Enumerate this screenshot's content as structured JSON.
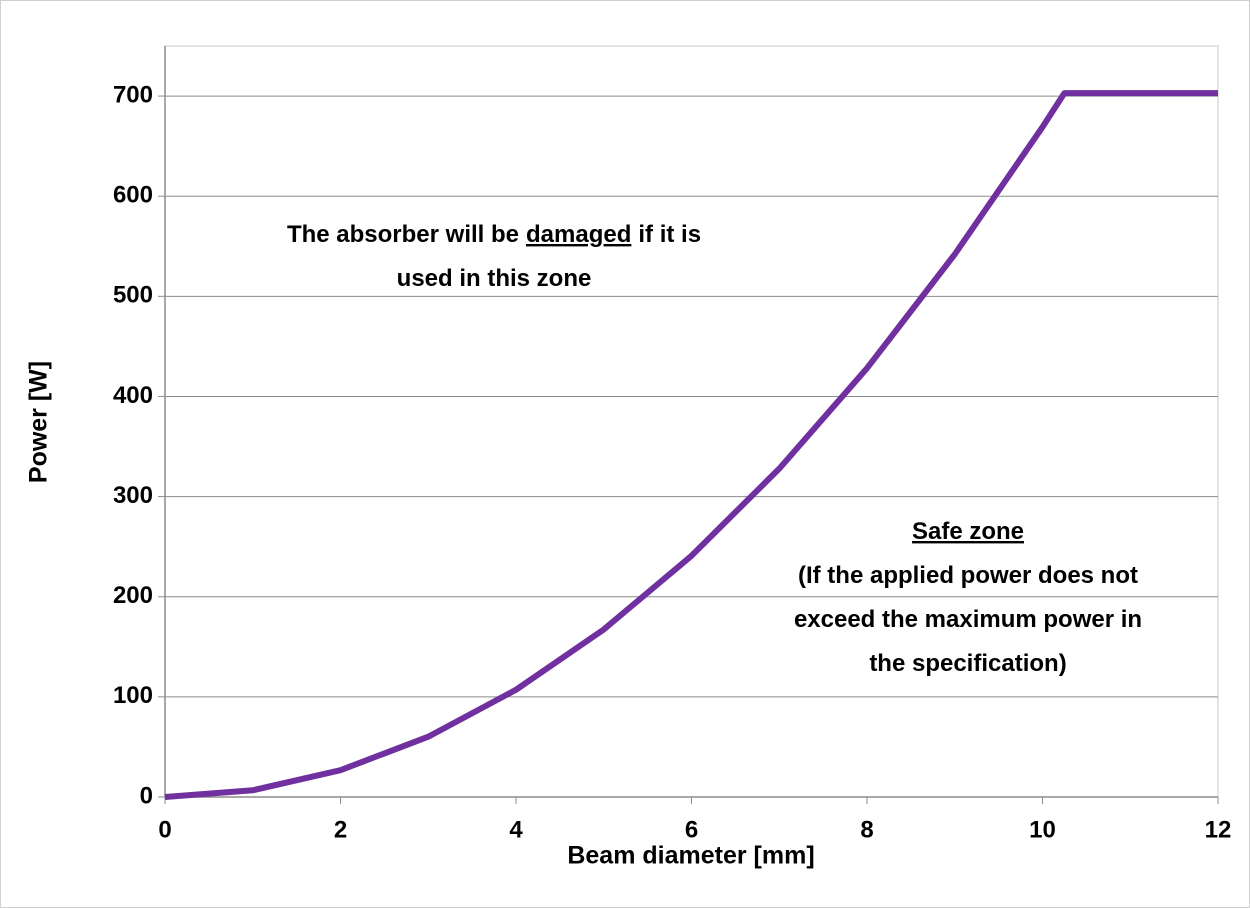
{
  "chart_data": {
    "type": "line",
    "x_label": "Beam diameter [mm]",
    "y_label": "Power [W]",
    "x": [
      0,
      1,
      2,
      3,
      4,
      5,
      6,
      7,
      8,
      9,
      10,
      10.25,
      12
    ],
    "series": [
      {
        "color": "#7030a0",
        "values": [
          0,
          6.7,
          26.8,
          60.2,
          107.1,
          167.3,
          240.9,
          327.9,
          428.2,
          542.0,
          669.1,
          703,
          703
        ]
      }
    ],
    "xlim": [
      0,
      12
    ],
    "xticks": [
      0,
      2,
      4,
      6,
      8,
      10,
      12
    ],
    "ylim": [
      0,
      750
    ],
    "yticks": [
      0,
      100,
      200,
      300,
      400,
      500,
      600,
      700
    ],
    "grid": true,
    "annotations": [
      {
        "lines": [
          [
            "The absorber will be",
            "damaged",
            "if it is"
          ],
          [
            "used in this zone"
          ]
        ]
      },
      {
        "lines": [
          [
            "Safe zone"
          ],
          [
            "(If the applied power does not"
          ],
          [
            "exceed the maximum power in"
          ],
          [
            "the specification)"
          ]
        ]
      }
    ]
  }
}
